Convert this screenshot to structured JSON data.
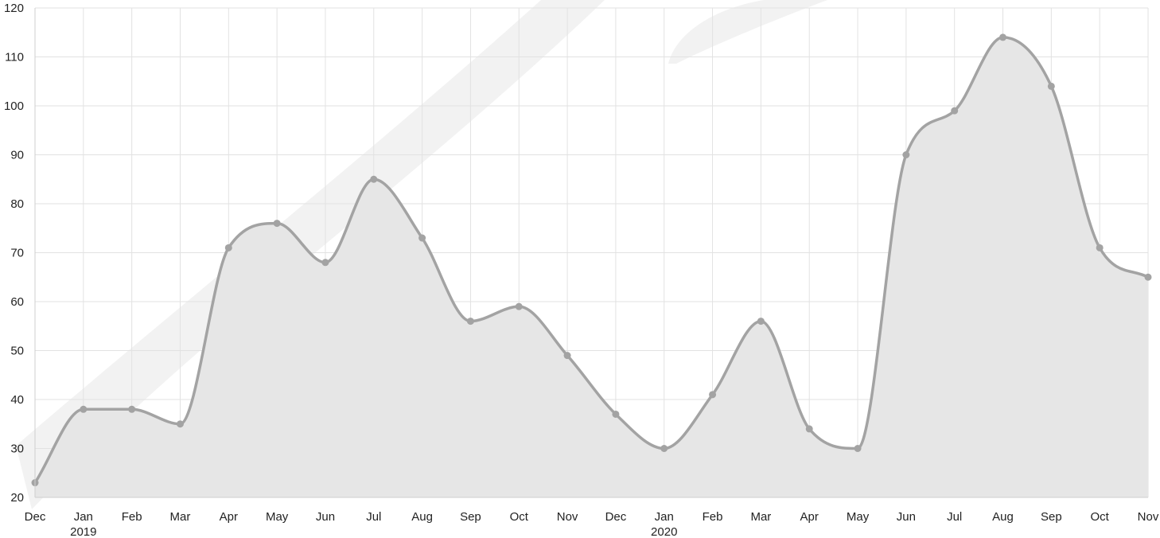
{
  "chart_data": {
    "type": "area",
    "title": "",
    "xlabel": "",
    "ylabel": "",
    "x": [
      "Dec",
      "Jan",
      "Feb",
      "Mar",
      "Apr",
      "May",
      "Jun",
      "Jul",
      "Aug",
      "Sep",
      "Oct",
      "Nov",
      "Dec",
      "Jan",
      "Feb",
      "Mar",
      "Apr",
      "May",
      "Jun",
      "Jul",
      "Aug",
      "Sep",
      "Oct",
      "Nov"
    ],
    "year_labels": [
      {
        "index": 1,
        "label": "2019"
      },
      {
        "index": 13,
        "label": "2020"
      }
    ],
    "series": [
      {
        "values": [
          23,
          38,
          38,
          35,
          71,
          76,
          68,
          85,
          73,
          56,
          59,
          49,
          37,
          30,
          41,
          56,
          34,
          30,
          90,
          99,
          114,
          104,
          71,
          65
        ],
        "color": "#a3a3a3",
        "fill": "#e6e6e6"
      }
    ],
    "ylim": [
      20,
      120
    ],
    "yticks": [
      20,
      30,
      40,
      50,
      60,
      70,
      80,
      90,
      100,
      110,
      120
    ],
    "grid": true,
    "smooth": true,
    "legend": "none"
  }
}
